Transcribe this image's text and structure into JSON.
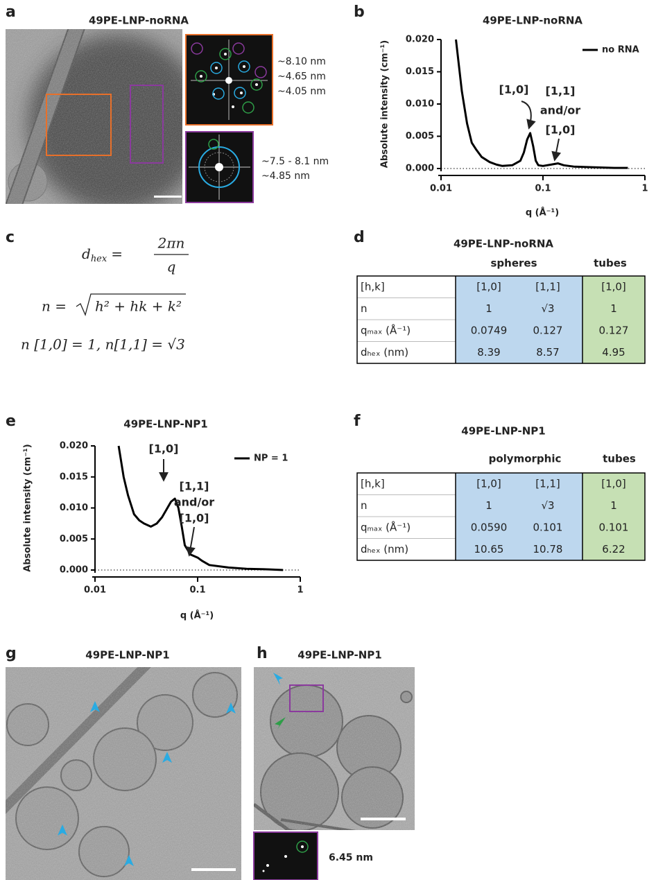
{
  "panel_a": {
    "letter": "a",
    "title": "49PE-LNP-noRNA",
    "fft_labels_top": [
      {
        "text": "~8.10 nm",
        "color": "#29abe2"
      },
      {
        "text": "~4.65 nm",
        "color": "#2e9e48"
      },
      {
        "text": "~4.05 nm",
        "color": "#8b3a9e"
      }
    ],
    "fft_labels_bottom": [
      {
        "text": "~7.5 - 8.1 nm",
        "color": "#29abe2"
      },
      {
        "text": "~4.85 nm",
        "color": "#2e9e48"
      }
    ]
  },
  "chart_data": [
    {
      "type": "line",
      "panel": "b",
      "title": "49PE-LNP-noRNA",
      "x_label": "q (Å⁻¹)",
      "y_label": "Absolute intensity (cm⁻¹)",
      "xscale": "log",
      "xlim": [
        0.01,
        1
      ],
      "xticks": [
        0.01,
        0.1,
        1
      ],
      "ylim": [
        0,
        0.02
      ],
      "yticks": [
        {
          "value": 0,
          "label": "0.000"
        },
        0.005,
        {
          "value": 0.01,
          "label": "0.010"
        },
        0.015,
        {
          "value": 0.02,
          "label": "0.020"
        }
      ],
      "reference_line": 0,
      "legend": "upper right",
      "x": [
        0.014,
        0.016,
        0.018,
        0.02,
        0.022,
        0.025,
        0.03,
        0.035,
        0.04,
        0.05,
        0.06,
        0.065,
        0.07,
        0.075,
        0.08,
        0.085,
        0.09,
        0.1,
        0.12,
        0.14,
        0.16,
        0.2,
        0.3,
        0.5,
        0.68
      ],
      "series": [
        {
          "name": "no RNA",
          "color": "#000000",
          "values": [
            0.02,
            0.012,
            0.007,
            0.004,
            0.003,
            0.0018,
            0.001,
            0.0006,
            0.0004,
            0.0005,
            0.0012,
            0.0025,
            0.0045,
            0.0055,
            0.0035,
            0.0012,
            0.0005,
            0.0004,
            0.0006,
            0.0008,
            0.0005,
            0.0003,
            0.0002,
            0.0001,
            0.0001
          ]
        }
      ],
      "annotations": [
        {
          "text": "[1,0]",
          "color": "#29abe2"
        },
        {
          "text": "[1,1]",
          "color": "#29abe2"
        },
        {
          "text": "and/or",
          "color": "#333333"
        },
        {
          "text": "[1,0]",
          "color": "#2e9e48"
        }
      ]
    },
    {
      "type": "line",
      "panel": "e",
      "title": "49PE-LNP-NP1",
      "x_label": "q (Å⁻¹)",
      "y_label": "Absolute intensity (cm⁻¹)",
      "xscale": "log",
      "xlim": [
        0.01,
        1
      ],
      "xticks": [
        0.01,
        0.1,
        1
      ],
      "ylim": [
        0,
        0.02
      ],
      "yticks": [
        {
          "value": 0,
          "label": "0.000"
        },
        0.005,
        {
          "value": 0.01,
          "label": "0.010"
        },
        0.015,
        {
          "value": 0.02,
          "label": "0.020"
        }
      ],
      "reference_line": 0,
      "legend": "upper right",
      "x": [
        0.017,
        0.019,
        0.021,
        0.024,
        0.027,
        0.03,
        0.035,
        0.04,
        0.045,
        0.05,
        0.055,
        0.06,
        0.065,
        0.07,
        0.075,
        0.085,
        0.1,
        0.11,
        0.13,
        0.2,
        0.3,
        0.5,
        0.68
      ],
      "series": [
        {
          "name": "NP = 1",
          "color": "#000000",
          "values": [
            0.02,
            0.015,
            0.012,
            0.009,
            0.008,
            0.0075,
            0.007,
            0.0075,
            0.0085,
            0.0098,
            0.011,
            0.0115,
            0.01,
            0.007,
            0.004,
            0.0025,
            0.002,
            0.0015,
            0.0008,
            0.0004,
            0.0002,
            0.0001,
            0
          ]
        }
      ],
      "annotations": [
        {
          "text": "[1,0]",
          "color": "#29abe2"
        },
        {
          "text": "[1,1]",
          "color": "#29abe2"
        },
        {
          "text": "and/or",
          "color": "#333333"
        },
        {
          "text": "[1,0]",
          "color": "#2e9e48"
        }
      ]
    }
  ],
  "panel_c": {
    "letter": "c",
    "eq1": {
      "var": "d",
      "sub": "hex",
      "eq": "=",
      "num": "2πn",
      "den": "q"
    },
    "eq2": {
      "lhs": "n =",
      "radicand": "h² + hk + k²"
    },
    "eq3": "n [1,0] = 1,  n[1,1] = √3"
  },
  "panel_d": {
    "letter": "d",
    "title": "49PE-LNP-noRNA",
    "groups": [
      "spheres",
      "tubes"
    ],
    "rows": [
      [
        "[h,k]",
        "[1,0]",
        "[1,1]",
        "[1,0]"
      ],
      [
        "n",
        "1",
        "√3",
        "1"
      ],
      [
        "qₘₐₓ (Å⁻¹)",
        "0.0749",
        "0.127",
        "0.127"
      ],
      [
        "dₕₑₓ (nm)",
        "8.39",
        "8.57",
        "4.95"
      ]
    ]
  },
  "panel_f": {
    "letter": "f",
    "title": "49PE-LNP-NP1",
    "groups": [
      "polymorphic",
      "tubes"
    ],
    "rows": [
      [
        "[h,k]",
        "[1,0]",
        "[1,1]",
        "[1,0]"
      ],
      [
        "n",
        "1",
        "√3",
        "1"
      ],
      [
        "qₘₐₓ (Å⁻¹)",
        "0.0590",
        "0.101",
        "0.101"
      ],
      [
        "dₕₑₓ (nm)",
        "10.65",
        "10.78",
        "6.22"
      ]
    ]
  },
  "panel_g": {
    "letter": "g",
    "title": "49PE-LNP-NP1"
  },
  "panel_h": {
    "letter": "h",
    "title": "49PE-LNP-NP1",
    "fft_label": "6.45 nm"
  }
}
